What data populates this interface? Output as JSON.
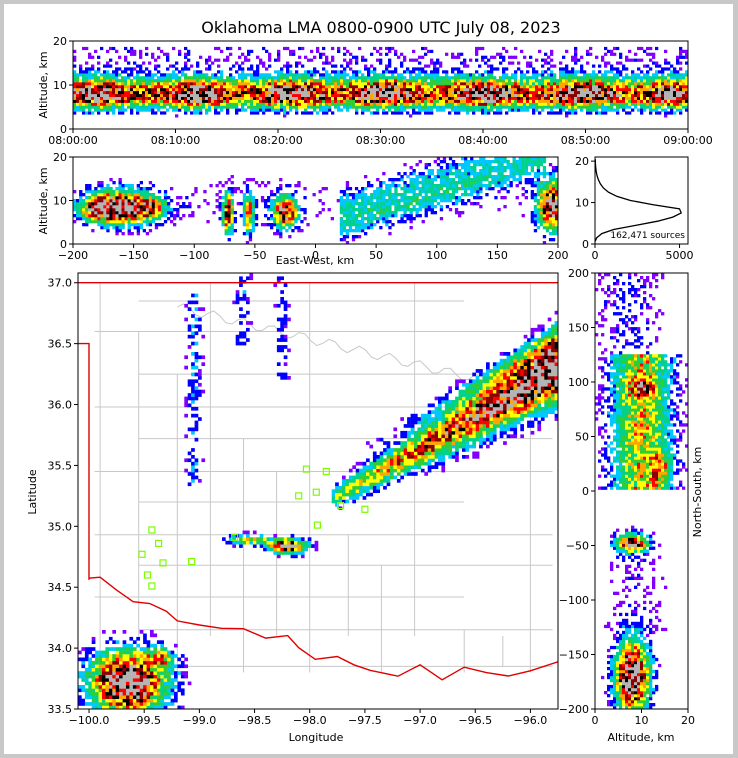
{
  "chart_data": {
    "type": "heatmap",
    "title": "Oklahoma LMA 0800-0900 UTC July 08, 2023",
    "colormap": [
      "#8000ff",
      "#0000ff",
      "#00c8ff",
      "#00d28c",
      "#32cd32",
      "#ffff00",
      "#ffa500",
      "#ff0000",
      "#8b0000",
      "#000000",
      "#b4b4b4"
    ],
    "panels": {
      "time_height": {
        "xlabel": "",
        "ylabel": "Altitude, km",
        "ylim": [
          0,
          20
        ],
        "yticks": [
          "0",
          "10",
          "20"
        ],
        "xticks": [
          "08:00:00",
          "08:10:00",
          "08:20:00",
          "08:30:00",
          "08:40:00",
          "08:50:00",
          "09:00:00"
        ],
        "core_altitude_km": [
          5,
          12
        ]
      },
      "east_west_height": {
        "xlabel": "East-West, km",
        "ylabel": "Altitude, km",
        "xlim": [
          -200,
          200
        ],
        "ylim": [
          0,
          20
        ],
        "xticks": [
          "−200",
          "−150",
          "−100",
          "−50",
          "0",
          "50",
          "100",
          "150",
          "200"
        ],
        "yticks": [
          "0",
          "10",
          "20"
        ]
      },
      "altitude_histogram": {
        "xlim": [
          0,
          5500
        ],
        "ylim": [
          0,
          21
        ],
        "xticks": [
          "0",
          "5000"
        ],
        "yticks": [
          "0",
          "10",
          "20"
        ],
        "annotation": "162,471 sources",
        "profile": [
          [
            0.6,
            2
          ],
          [
            1.5,
            100
          ],
          [
            2.5,
            400
          ],
          [
            3.5,
            1100
          ],
          [
            4.5,
            2400
          ],
          [
            5.5,
            3700
          ],
          [
            6.5,
            4600
          ],
          [
            7.5,
            5100
          ],
          [
            8.5,
            5000
          ],
          [
            9.5,
            3400
          ],
          [
            10.5,
            2100
          ],
          [
            11.5,
            1300
          ],
          [
            12.5,
            800
          ],
          [
            13.5,
            500
          ],
          [
            14.5,
            320
          ],
          [
            15.5,
            200
          ],
          [
            16.5,
            120
          ],
          [
            17.5,
            70
          ],
          [
            18.5,
            40
          ],
          [
            19.5,
            25
          ],
          [
            20.5,
            15
          ]
        ]
      },
      "plan_view": {
        "xlabel": "Longitude",
        "ylabel": "Latitude",
        "xlim": [
          -100.1,
          -95.75
        ],
        "ylim": [
          33.5,
          37.08
        ],
        "xticks": [
          "−100.0",
          "−99.5",
          "−99.0",
          "−98.5",
          "−98.0",
          "−97.5",
          "−97.0",
          "−96.5",
          "−96.0"
        ],
        "yticks": [
          "33.5",
          "34.0",
          "34.5",
          "35.0",
          "35.5",
          "36.0",
          "36.5",
          "37.0"
        ],
        "stations": [
          [
            -99.43,
            34.97
          ],
          [
            -99.37,
            34.86
          ],
          [
            -99.52,
            34.77
          ],
          [
            -99.33,
            34.7
          ],
          [
            -99.07,
            34.71
          ],
          [
            -99.47,
            34.6
          ],
          [
            -99.43,
            34.51
          ],
          [
            -98.68,
            34.91
          ],
          [
            -98.03,
            35.47
          ],
          [
            -97.85,
            35.45
          ],
          [
            -97.94,
            35.28
          ],
          [
            -98.1,
            35.25
          ],
          [
            -97.93,
            35.01
          ],
          [
            -97.72,
            35.17
          ],
          [
            -97.5,
            35.14
          ]
        ]
      },
      "north_south_height": {
        "xlabel": "Altitude, km",
        "ylabel": "North-South, km",
        "xlim": [
          0,
          20
        ],
        "ylim": [
          -200,
          200
        ],
        "xticks": [
          "0",
          "10",
          "20"
        ],
        "yticks": [
          "−200",
          "−150",
          "−100",
          "−50",
          "0",
          "50",
          "100",
          "150",
          "200"
        ]
      }
    }
  }
}
